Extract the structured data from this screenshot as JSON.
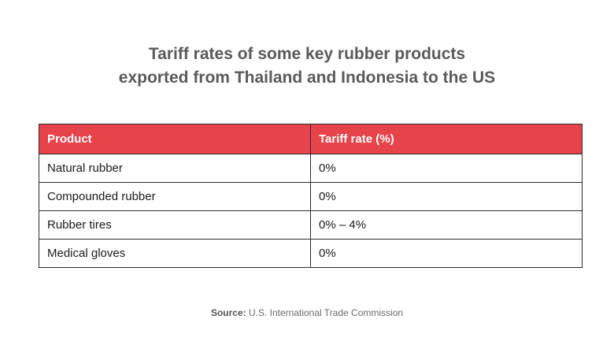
{
  "title": {
    "line1": "Tariff rates of some key rubber products",
    "line2": "exported from Thailand and Indonesia to the US"
  },
  "table": {
    "headers": [
      "Product",
      "Tariff rate (%)"
    ],
    "rows": [
      [
        "Natural rubber",
        "0%"
      ],
      [
        "Compounded rubber",
        "0%"
      ],
      [
        "Rubber tires",
        "0% – 4%"
      ],
      [
        "Medical gloves",
        "0%"
      ]
    ]
  },
  "source": {
    "label": "Source:",
    "text": "U.S. International Trade Commission"
  },
  "colors": {
    "header_background": "#e6434b",
    "title_text": "#5a5a5a"
  }
}
